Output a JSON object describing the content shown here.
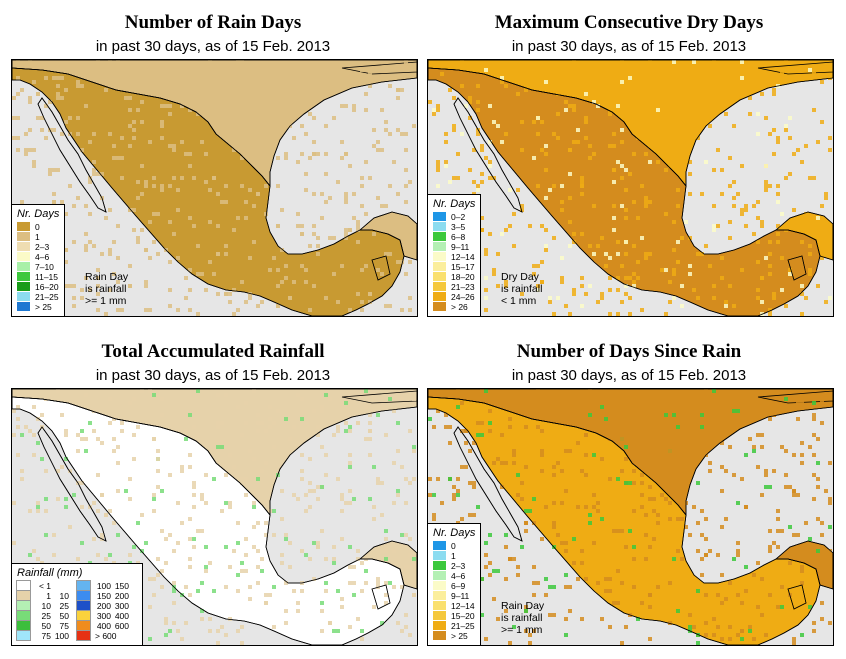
{
  "panels": [
    {
      "title": "Number of Rain Days",
      "subtitle": "in past 30 days, as of  15 Feb. 2013",
      "legend_title": "Nr. Days",
      "legend": [
        {
          "label": "0",
          "color": "#c89a32"
        },
        {
          "label": "1",
          "color": "#dcbe82"
        },
        {
          "label": "2–3",
          "color": "#efddb2"
        },
        {
          "label": "4–6",
          "color": "#fbfbc8"
        },
        {
          "label": "7–10",
          "color": "#a8f0a8"
        },
        {
          "label": "11–15",
          "color": "#3cc83c"
        },
        {
          "label": "16–20",
          "color": "#189c18"
        },
        {
          "label": "21–25",
          "color": "#8cdcf0"
        },
        {
          "label": "> 25",
          "color": "#1e78d2"
        }
      ],
      "note": [
        "Rain Day",
        "is rainfall",
        ">= 1 mm"
      ]
    },
    {
      "title": "Maximum Consecutive Dry Days",
      "subtitle": "in past 30 days, as of  15 Feb. 2013",
      "legend_title": "Nr. Days",
      "legend": [
        {
          "label": "0–2",
          "color": "#1e96e6"
        },
        {
          "label": "3–5",
          "color": "#8cdcf0"
        },
        {
          "label": "6–8",
          "color": "#3cc83c"
        },
        {
          "label": "9–11",
          "color": "#b4f0b4"
        },
        {
          "label": "12–14",
          "color": "#fbfbc8"
        },
        {
          "label": "15–17",
          "color": "#fbee9c"
        },
        {
          "label": "18–20",
          "color": "#fae06e"
        },
        {
          "label": "21–23",
          "color": "#f5c83c"
        },
        {
          "label": "24–26",
          "color": "#efac14"
        },
        {
          "label": "> 26",
          "color": "#d48c1e"
        }
      ],
      "note": [
        "Dry Day",
        "is rainfall",
        "< 1 mm"
      ]
    },
    {
      "title": "Total Accumulated Rainfall",
      "subtitle": "in past 30 days, as of  15 Feb. 2013",
      "legend_title": "Rainfall (mm)",
      "legend_left": [
        {
          "a": "< 1",
          "b": "",
          "color": "#ffffff"
        },
        {
          "a": "1",
          "b": "10",
          "color": "#e6d2aa"
        },
        {
          "a": "10",
          "b": "25",
          "color": "#b4f0b4"
        },
        {
          "a": "25",
          "b": "50",
          "color": "#78dc78"
        },
        {
          "a": "50",
          "b": "75",
          "color": "#3cbe3c"
        },
        {
          "a": "75",
          "b": "100",
          "color": "#a0e6fa"
        }
      ],
      "legend_right": [
        {
          "a": "100",
          "b": "150",
          "color": "#64b4f0"
        },
        {
          "a": "150",
          "b": "200",
          "color": "#3c8cf0"
        },
        {
          "a": "200",
          "b": "300",
          "color": "#1e50c8"
        },
        {
          "a": "300",
          "b": "400",
          "color": "#fad23c"
        },
        {
          "a": "400",
          "b": "600",
          "color": "#f08c1e"
        },
        {
          "a": "> 600",
          "b": "",
          "color": "#e63214"
        }
      ]
    },
    {
      "title": "Number of Days Since Rain",
      "subtitle": "in past 30 days, as of  15 Feb. 2013",
      "legend_title": "Nr. Days",
      "legend": [
        {
          "label": "0",
          "color": "#1e96e6"
        },
        {
          "label": "1",
          "color": "#8cdcf0"
        },
        {
          "label": "2–3",
          "color": "#3cc83c"
        },
        {
          "label": "4–6",
          "color": "#b4f0b4"
        },
        {
          "label": "6–9",
          "color": "#fbfbc8"
        },
        {
          "label": "9–11",
          "color": "#fbee9c"
        },
        {
          "label": "12–14",
          "color": "#fae06e"
        },
        {
          "label": "15–20",
          "color": "#f5c83c"
        },
        {
          "label": "21–25",
          "color": "#efac14"
        },
        {
          "label": "> 25",
          "color": "#d48c1e"
        }
      ],
      "note": [
        "Rain Day",
        "is rainfall",
        ">= 1 mm"
      ]
    }
  ],
  "map_colors": {
    "ocean": "#e6e6e6",
    "border": "#000000"
  }
}
